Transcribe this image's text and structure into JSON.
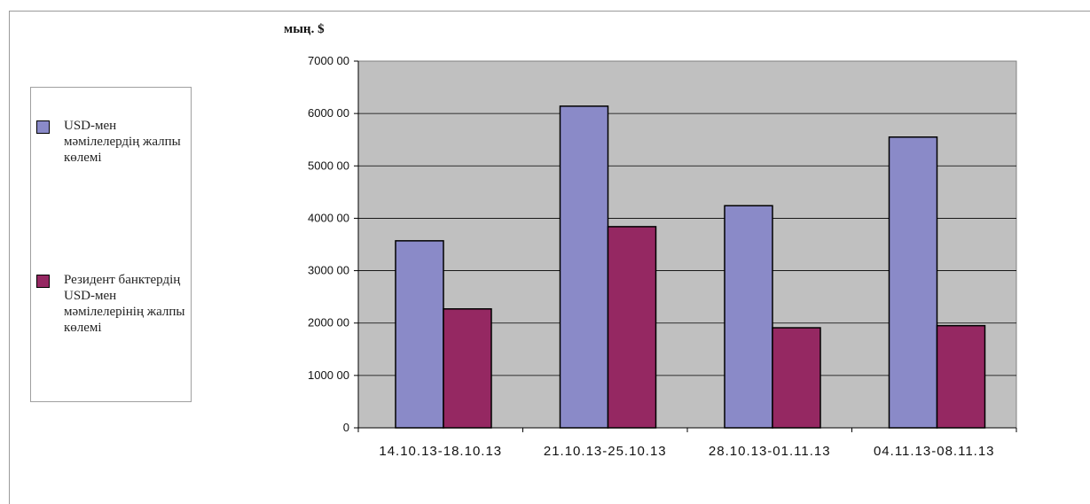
{
  "chart_data": {
    "type": "bar",
    "title": "",
    "unit_label": "мың. $",
    "xlabel": "",
    "ylabel": "",
    "categories": [
      "14.10.13-18.10.13",
      "21.10.13-25.10.13",
      "28.10.13-01.11.13",
      "04.11.13-08.11.13"
    ],
    "y_ticks": [
      0,
      100000,
      200000,
      300000,
      400000,
      500000,
      600000,
      700000
    ],
    "y_tick_labels": [
      "0",
      "1000 00",
      "2000 00",
      "3000 00",
      "4000 00",
      "5000 00",
      "6000 00",
      "7000 00"
    ],
    "ylim": [
      0,
      700000
    ],
    "grid": true,
    "legend_position": "left",
    "series": [
      {
        "name": "USD-мен мәмілелердің жалпы көлемі",
        "color": "#8a8ac8",
        "values": [
          357000,
          614000,
          424000,
          555000
        ]
      },
      {
        "name": "Резидент банктердің USD-мен мәмілелерінің жалпы көлемі",
        "color": "#952862",
        "values": [
          227000,
          384000,
          191000,
          195000
        ]
      }
    ],
    "plot_background": "#c0c0c0"
  }
}
